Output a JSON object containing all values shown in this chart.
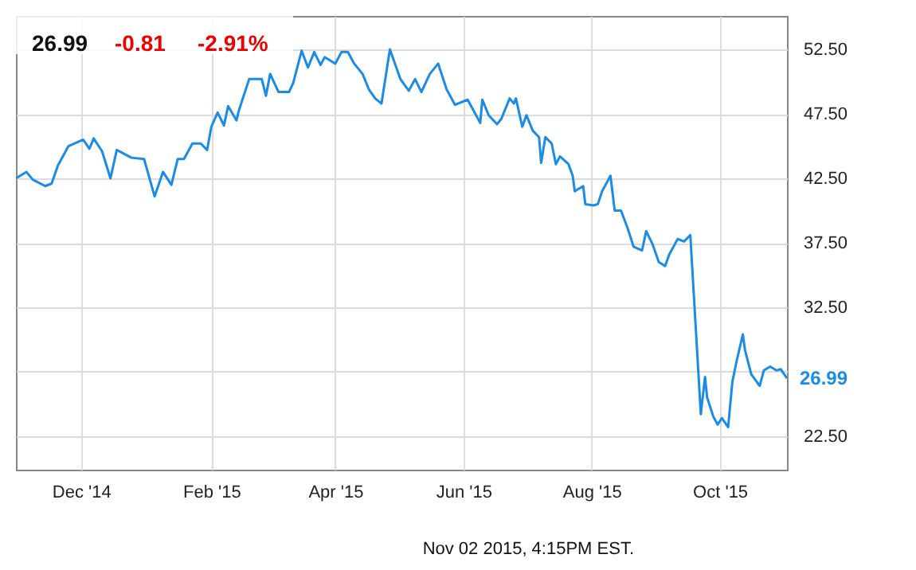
{
  "chart_data": {
    "type": "line",
    "annotations": [
      "26.99",
      "-0.81",
      "-2.91%",
      "Nov 02 2015, 4:15PM EST.",
      {
        "text": "26.99",
        "x": "2015-11-02",
        "y": 26.99
      }
    ],
    "x": [
      "2014-10-31",
      "2014-11-05",
      "2014-11-08",
      "2014-11-14",
      "2014-11-17",
      "2014-11-20",
      "2014-11-25",
      "2014-12-02",
      "2014-12-05",
      "2014-12-07",
      "2014-12-11",
      "2014-12-15",
      "2014-12-18",
      "2014-12-25",
      "2014-12-31",
      "2015-01-05",
      "2015-01-09",
      "2015-01-13",
      "2015-01-16",
      "2015-01-19",
      "2015-01-23",
      "2015-01-27",
      "2015-01-30",
      "2015-02-01",
      "2015-02-04",
      "2015-02-07",
      "2015-02-09",
      "2015-02-13",
      "2015-02-14",
      "2015-02-19",
      "2015-02-25",
      "2015-02-27",
      "2015-03-01",
      "2015-03-05",
      "2015-03-10",
      "2015-03-12",
      "2015-03-16",
      "2015-03-19",
      "2015-03-22",
      "2015-03-25",
      "2015-03-27",
      "2015-04-01",
      "2015-04-04",
      "2015-04-07",
      "2015-04-10",
      "2015-04-14",
      "2015-04-17",
      "2015-04-20",
      "2015-04-23",
      "2015-04-27",
      "2015-05-02",
      "2015-05-06",
      "2015-05-09",
      "2015-05-12",
      "2015-05-16",
      "2015-05-20",
      "2015-05-24",
      "2015-05-28",
      "2015-06-03",
      "2015-06-06",
      "2015-06-09",
      "2015-06-10",
      "2015-06-13",
      "2015-06-17",
      "2015-06-19",
      "2015-06-23",
      "2015-06-25",
      "2015-06-26",
      "2015-06-29",
      "2015-07-01",
      "2015-07-04",
      "2015-07-07",
      "2015-07-08",
      "2015-07-10",
      "2015-07-13",
      "2015-07-15",
      "2015-07-17",
      "2015-07-21",
      "2015-07-23",
      "2015-07-24",
      "2015-07-28",
      "2015-07-29",
      "2015-08-02",
      "2015-08-04",
      "2015-08-06",
      "2015-08-10",
      "2015-08-12",
      "2015-08-15",
      "2015-08-18",
      "2015-08-21",
      "2015-08-25",
      "2015-08-27",
      "2015-08-30",
      "2015-09-02",
      "2015-09-05",
      "2015-09-07",
      "2015-09-11",
      "2015-09-14",
      "2015-09-17",
      "2015-09-22",
      "2015-09-24",
      "2015-09-25",
      "2015-09-28",
      "2015-09-30",
      "2015-10-02",
      "2015-10-05",
      "2015-10-07",
      "2015-10-09",
      "2015-10-12",
      "2015-10-13",
      "2015-10-16",
      "2015-10-20",
      "2015-10-22",
      "2015-10-25",
      "2015-10-28",
      "2015-10-30",
      "2015-11-02"
    ],
    "series": [
      {
        "color": "#1a8be6",
        "values": [
          42.5,
          43.0,
          42.4,
          41.9,
          42.1,
          43.5,
          45.0,
          45.5,
          44.8,
          45.6,
          44.6,
          42.5,
          44.7,
          44.1,
          44.0,
          41.1,
          43.0,
          42.0,
          44.0,
          44.0,
          45.2,
          45.2,
          44.7,
          46.5,
          47.6,
          46.6,
          48.1,
          47.0,
          47.7,
          50.2,
          50.2,
          48.9,
          50.6,
          49.2,
          49.2,
          49.9,
          52.4,
          51.1,
          52.3,
          51.3,
          51.9,
          51.4,
          52.3,
          52.3,
          51.4,
          50.6,
          49.4,
          48.7,
          48.3,
          52.5,
          50.2,
          49.3,
          50.2,
          49.2,
          50.6,
          51.4,
          49.4,
          48.2,
          48.6,
          47.7,
          46.8,
          48.6,
          47.4,
          46.7,
          47.1,
          48.7,
          48.3,
          48.7,
          46.5,
          47.4,
          46.2,
          45.7,
          43.7,
          45.7,
          45.2,
          43.6,
          44.2,
          43.6,
          42.7,
          41.5,
          41.9,
          40.5,
          40.4,
          40.5,
          41.5,
          42.7,
          40.0,
          40.0,
          38.7,
          37.2,
          36.9,
          38.4,
          37.4,
          36.0,
          35.7,
          36.6,
          37.8,
          37.6,
          38.1,
          24.2,
          27.1,
          25.5,
          24.0,
          23.4,
          23.9,
          23.2,
          26.7,
          28.3,
          30.4,
          29.2,
          27.3,
          26.4,
          27.6,
          27.9,
          27.6,
          27.7,
          26.99
        ]
      }
    ],
    "xlim": [
      "2014-10-31",
      "2015-11-02"
    ],
    "ylim": [
      19.9,
      55.1
    ],
    "xticks": [
      {
        "value": "2014-12-01",
        "label": "Dec '14"
      },
      {
        "value": "2015-02-01",
        "label": "Feb '15"
      },
      {
        "value": "2015-04-01",
        "label": "Apr '15"
      },
      {
        "value": "2015-06-01",
        "label": "Jun '15"
      },
      {
        "value": "2015-08-01",
        "label": "Aug '15"
      },
      {
        "value": "2015-10-01",
        "label": "Oct '15"
      }
    ],
    "yticks": [
      {
        "value": 22.5,
        "label": "22.50"
      },
      {
        "value": 27.5,
        "label": null
      },
      {
        "value": 32.5,
        "label": "32.50"
      },
      {
        "value": 37.5,
        "label": "37.50"
      },
      {
        "value": 42.5,
        "label": "42.50"
      },
      {
        "value": 47.5,
        "label": "47.50"
      },
      {
        "value": 52.5,
        "label": "52.50"
      }
    ],
    "grid": true
  }
}
